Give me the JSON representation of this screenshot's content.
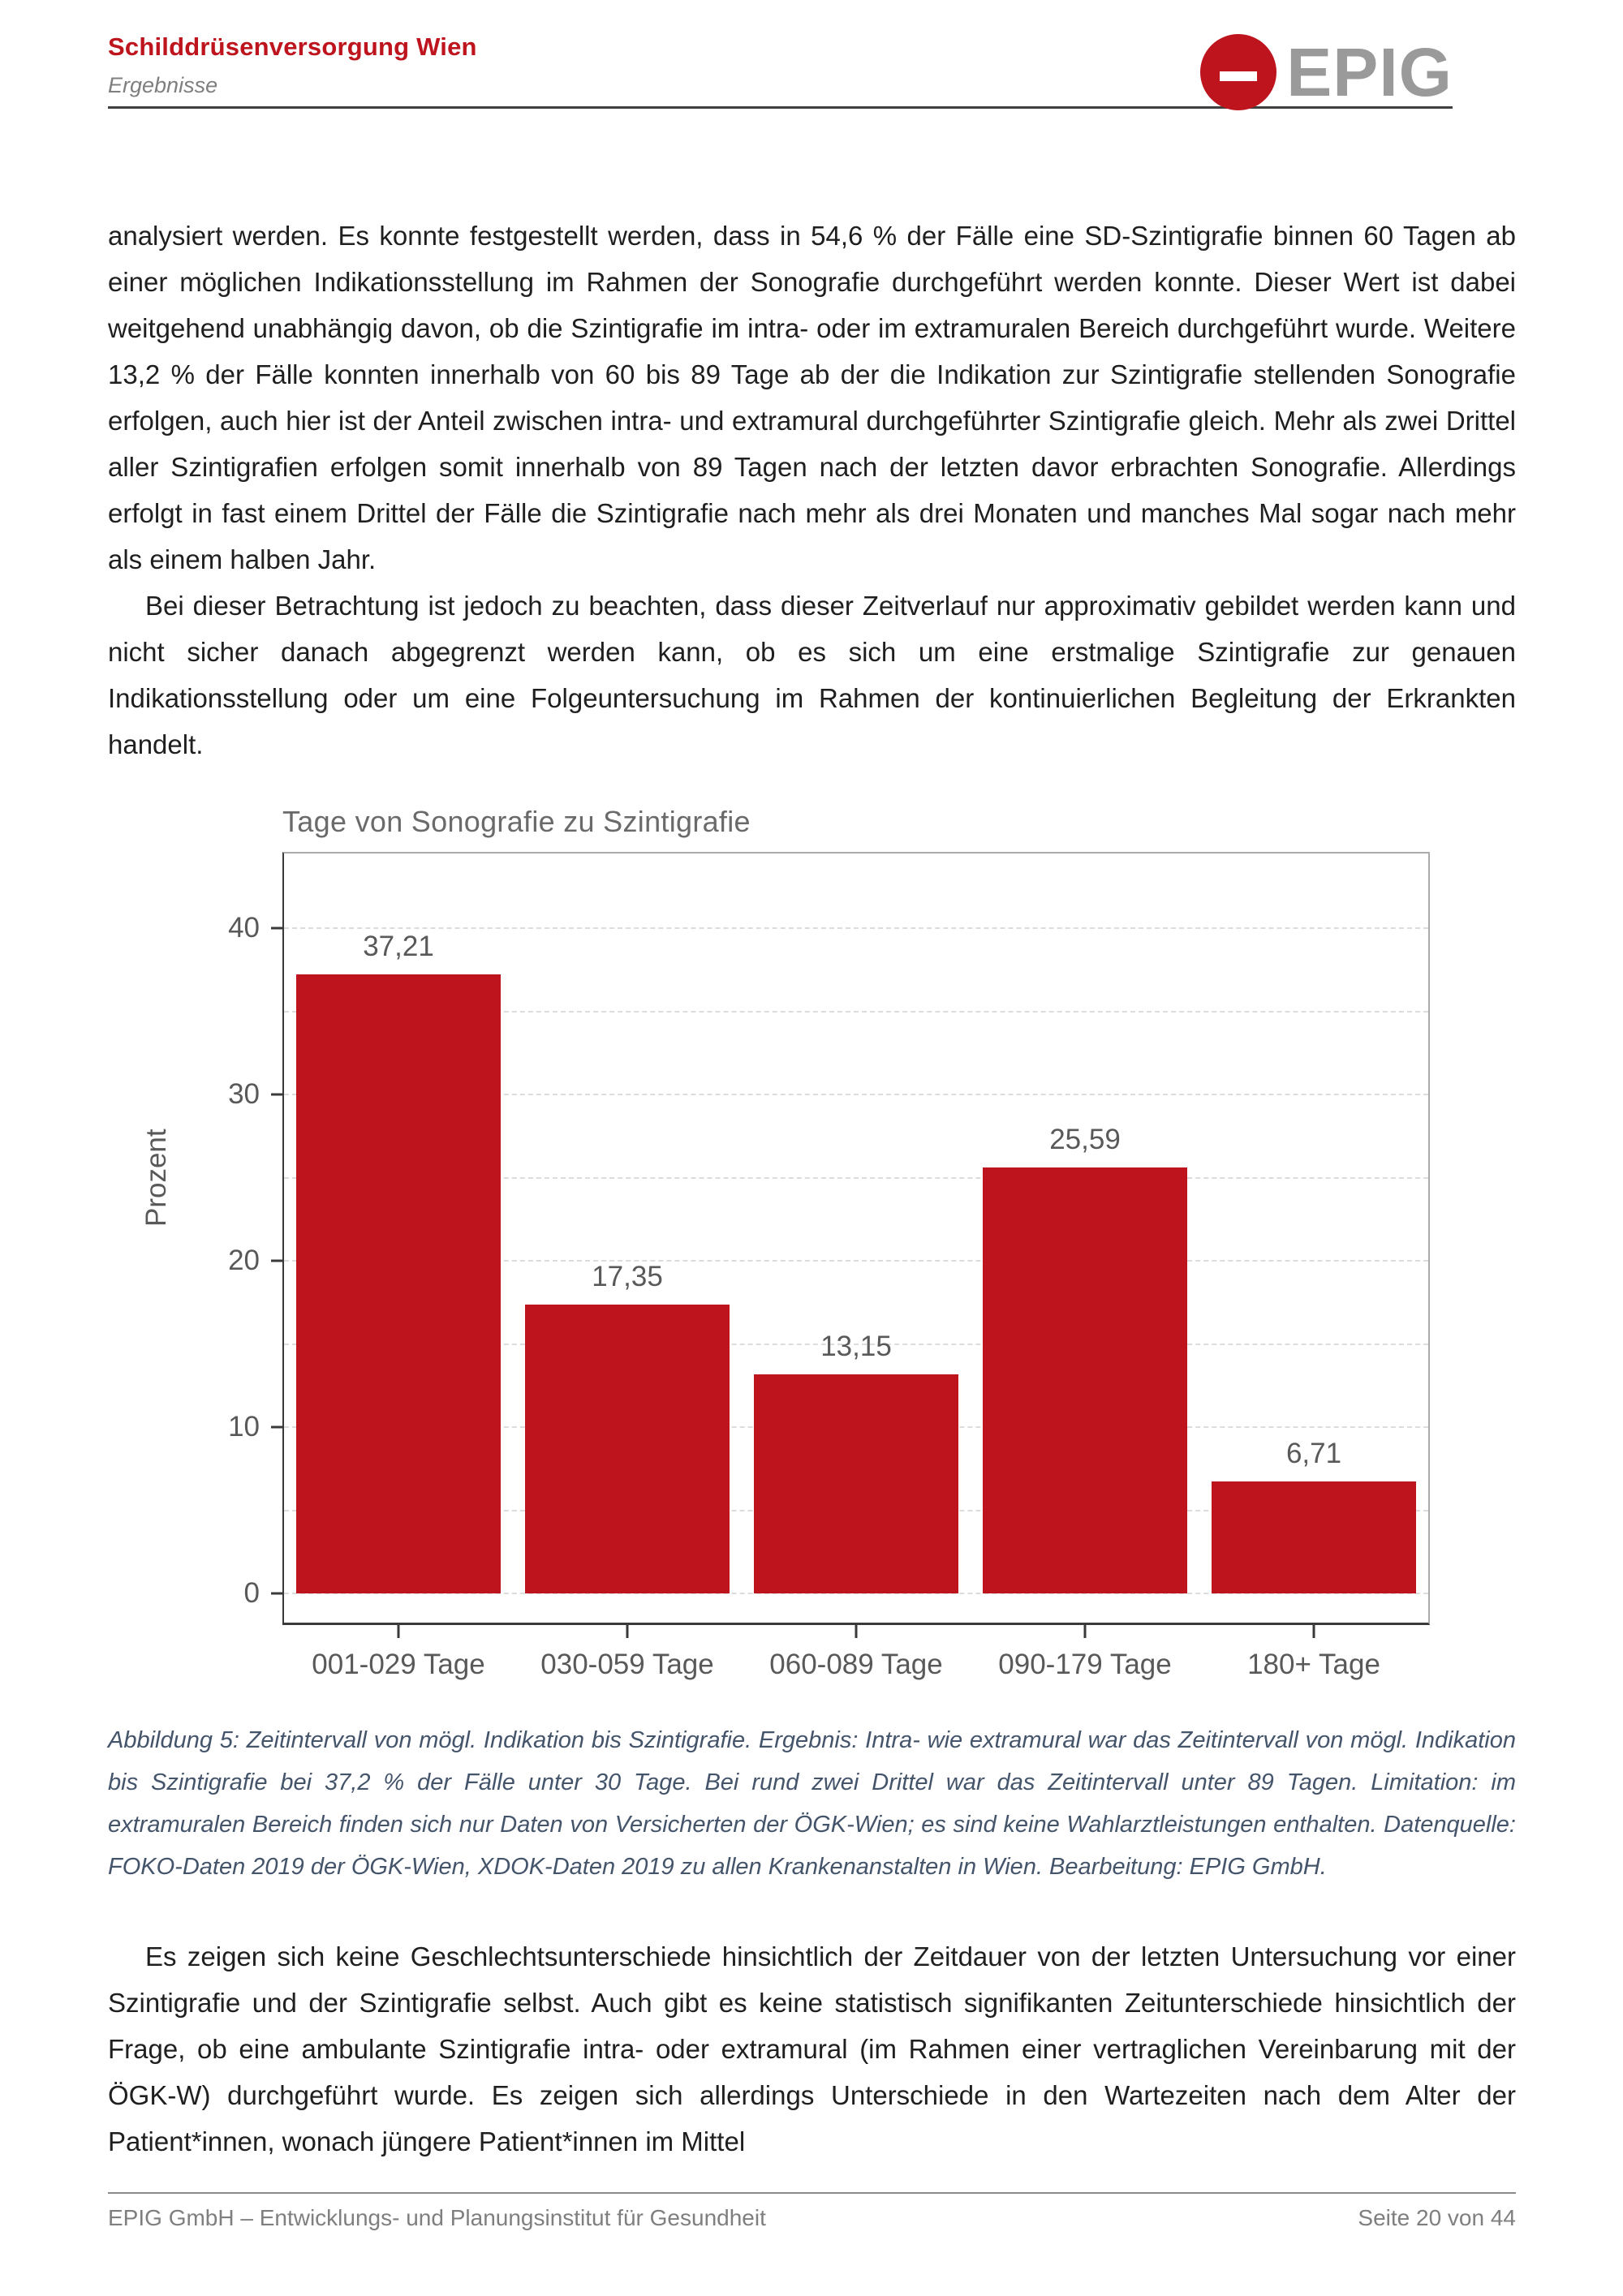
{
  "header": {
    "title": "Schilddrüsenversorgung Wien",
    "subtitle": "Ergebnisse",
    "logo_text": "EPIG"
  },
  "body": {
    "paragraph1": "analysiert werden. Es konnte festgestellt werden, dass in 54,6 % der Fälle eine SD-Szintigrafie binnen 60 Tagen ab einer möglichen Indikationsstellung im Rahmen der Sonografie durchgeführt werden konnte. Dieser Wert ist dabei weitgehend unabhängig davon, ob die Szintigrafie im intra- oder im extramuralen Bereich durchgeführt wurde. Weitere 13,2 % der Fälle konnten innerhalb von 60 bis 89 Tage ab der die Indikation zur Szintigrafie stellenden Sonografie erfolgen, auch hier ist der Anteil zwischen intra- und extramural durchgeführter Szintigrafie gleich. Mehr als zwei Drittel aller Szintigrafien erfolgen somit innerhalb von 89 Tagen nach der letzten davor erbrachten Sonografie. Allerdings erfolgt in fast einem Drittel der Fälle die Szintigrafie nach mehr als drei Monaten und manches Mal sogar nach mehr als einem halben Jahr.",
    "paragraph2": "Bei dieser Betrachtung ist jedoch zu beachten, dass dieser Zeitverlauf nur approximativ gebildet werden kann und nicht sicher danach abgegrenzt werden kann, ob es sich um eine erstmalige Szintigrafie zur genauen Indikationsstellung oder um eine Folgeuntersuchung im Rahmen der kontinuierlichen Begleitung der Erkrankten handelt.",
    "paragraph3": "Es zeigen sich keine Geschlechtsunterschiede hinsichtlich der Zeitdauer von der letzten Untersuchung vor einer Szintigrafie und der Szintigrafie selbst. Auch gibt es keine statistisch signifikanten Zeitunterschiede hinsichtlich der Frage, ob eine ambulante Szintigrafie intra- oder extramural (im Rahmen einer vertraglichen Vereinbarung mit der ÖGK-W) durchgeführt wurde. Es zeigen sich allerdings Unterschiede in den Wartezeiten nach dem Alter der Patient*innen, wonach jüngere Patient*innen im Mittel"
  },
  "chart_data": {
    "type": "bar",
    "title": "Tage von Sonografie zu Szintigrafie",
    "categories": [
      "001-029 Tage",
      "030-059 Tage",
      "060-089 Tage",
      "090-179 Tage",
      "180+ Tage"
    ],
    "values": [
      37.21,
      17.35,
      13.15,
      25.59,
      6.71
    ],
    "value_labels": [
      "37,21",
      "17,35",
      "13,15",
      "25,59",
      "6,71"
    ],
    "xlabel": "",
    "ylabel": "Prozent",
    "yticks": [
      0,
      10,
      20,
      30,
      40
    ],
    "ylim": [
      0,
      44
    ],
    "grid": "horizontal dashed every 5, light gray",
    "legend": "none",
    "bar_color": "#be141e",
    "label_color": "#595959"
  },
  "figure": {
    "caption": "Abbildung 5: Zeitintervall von mögl. Indikation bis Szintigrafie. Ergebnis: Intra- wie extramural war das Zeitintervall von mögl. Indikation bis Szintigrafie bei 37,2 % der Fälle unter 30 Tage. Bei rund zwei Drittel war das Zeitintervall unter 89 Tagen. Limitation: im extramuralen Bereich finden sich nur Daten von Versicherten der ÖGK-Wien; es sind keine Wahlarztleistungen enthalten. Datenquelle: FOKO-Daten 2019 der ÖGK-Wien, XDOK-Daten 2019 zu allen Krankenanstalten in Wien. Bearbeitung: EPIG GmbH."
  },
  "footer": {
    "left": "EPIG GmbH – Entwicklungs- und Planungsinstitut für Gesundheit",
    "right": "Seite 20 von 44"
  },
  "colors": {
    "accent_red": "#be141e",
    "caption_blue": "#44546a",
    "logo_gray": "#9a9a9a"
  }
}
